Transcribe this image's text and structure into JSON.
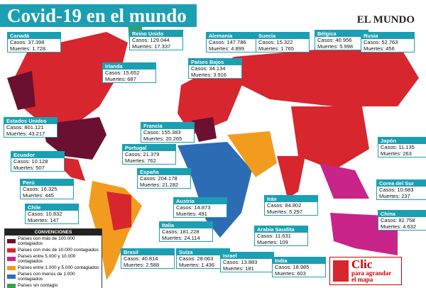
{
  "header": {
    "title": "Covid-19 en el mundo",
    "logo": "EL MUNDO"
  },
  "countries": [
    {
      "name": "Canadá",
      "lines": [
        "Casos: 37.398",
        "Muertes: 1.728"
      ]
    },
    {
      "name": "Reino Unido",
      "lines": [
        "Casos: 129.044",
        "Muertes: 17.337"
      ]
    },
    {
      "name": "Alemania",
      "lines": [
        "Casos: 147.786",
        "Muertes: 4.899"
      ]
    },
    {
      "name": "Suecia",
      "lines": [
        "Casos: 15.322",
        "Muertes: 1.765"
      ]
    },
    {
      "name": "Bélgica",
      "lines": [
        "Casos: 40.956",
        "Muertes: 5.998"
      ]
    },
    {
      "name": "Rusia",
      "lines": [
        "Casos: 52.763",
        "Muertes: 456"
      ]
    },
    {
      "name": "Irlanda",
      "lines": [
        "Casos: 15.652",
        "Muertes: 687"
      ]
    },
    {
      "name": "Países Bajos",
      "lines": [
        "Casos: 34.134",
        "Muertes: 3.916"
      ]
    },
    {
      "name": "Estados Unidos",
      "lines": [
        "Casos: 801.121",
        "Muertes: 43.217"
      ]
    },
    {
      "name": "Francia",
      "lines": [
        "Casos: 155.383",
        "Muertes: 20.265"
      ]
    },
    {
      "name": "Japón",
      "lines": [
        "Casos: 11.135",
        "Muertes: 263"
      ]
    },
    {
      "name": "Portugal",
      "lines": [
        "Casos: 21.379",
        "Muertes: 762"
      ]
    },
    {
      "name": "Ecuador",
      "lines": [
        "Casos: 10.128",
        "Muertes: 507"
      ]
    },
    {
      "name": "España",
      "lines": [
        "Casos: 204.178",
        "Muertes: 21.282"
      ]
    },
    {
      "name": "Corea del Sur",
      "lines": [
        "Casos: 10.683",
        "Muertes: 237"
      ]
    },
    {
      "name": "Perú",
      "lines": [
        "Casos: 16.325",
        "Muertes: 445"
      ]
    },
    {
      "name": "Austria",
      "lines": [
        "Casos: 14.873",
        "Muertes: 491"
      ]
    },
    {
      "name": "Irán",
      "lines": [
        "Casos: 84.802",
        "Muertes: 5.297"
      ]
    },
    {
      "name": "Chile",
      "lines": [
        "Casos: 10.832",
        "Muertes: 147"
      ]
    },
    {
      "name": "China",
      "lines": [
        "Casos: 82.758",
        "Muertes: 4.632"
      ]
    },
    {
      "name": "Italia",
      "lines": [
        "Casos: 181.228",
        "Muertes: 24.114"
      ]
    },
    {
      "name": "Arabia Saudita",
      "lines": [
        "Casos: 11.631",
        "Muertes: 109"
      ]
    },
    {
      "name": "Brasil",
      "lines": [
        "Casos: 40.814",
        "Muertes: 2.588"
      ]
    },
    {
      "name": "Suiza",
      "lines": [
        "Casos: 28.063",
        "Muertes: 1.436"
      ]
    },
    {
      "name": "Israel",
      "lines": [
        "Casos: 13.883",
        "Muertes: 181"
      ]
    },
    {
      "name": "India",
      "lines": [
        "Casos: 18.985",
        "Muertes: 603"
      ]
    }
  ],
  "legend": {
    "title": "CONVENCIONES",
    "items": [
      {
        "label": "Países con más de 100.000 contagiados",
        "color": "#6b1030"
      },
      {
        "label": "Países con más de 10.000 contagiados",
        "color": "#d7262e"
      },
      {
        "label": "Países entre 5.000 y 10.000 contagiados",
        "color": "#c8248a"
      },
      {
        "label": "Países entre 1.000 y 5.000 contagiados",
        "color": "#f29c1f"
      },
      {
        "label": "Países con menos de 1.000 contagiados",
        "color": "#2b6cb5"
      },
      {
        "label": "Países sin contagio",
        "color": "#3aa047"
      }
    ]
  },
  "button": {
    "lines": [
      "Clic",
      "para agrandar",
      "el mapa"
    ]
  }
}
